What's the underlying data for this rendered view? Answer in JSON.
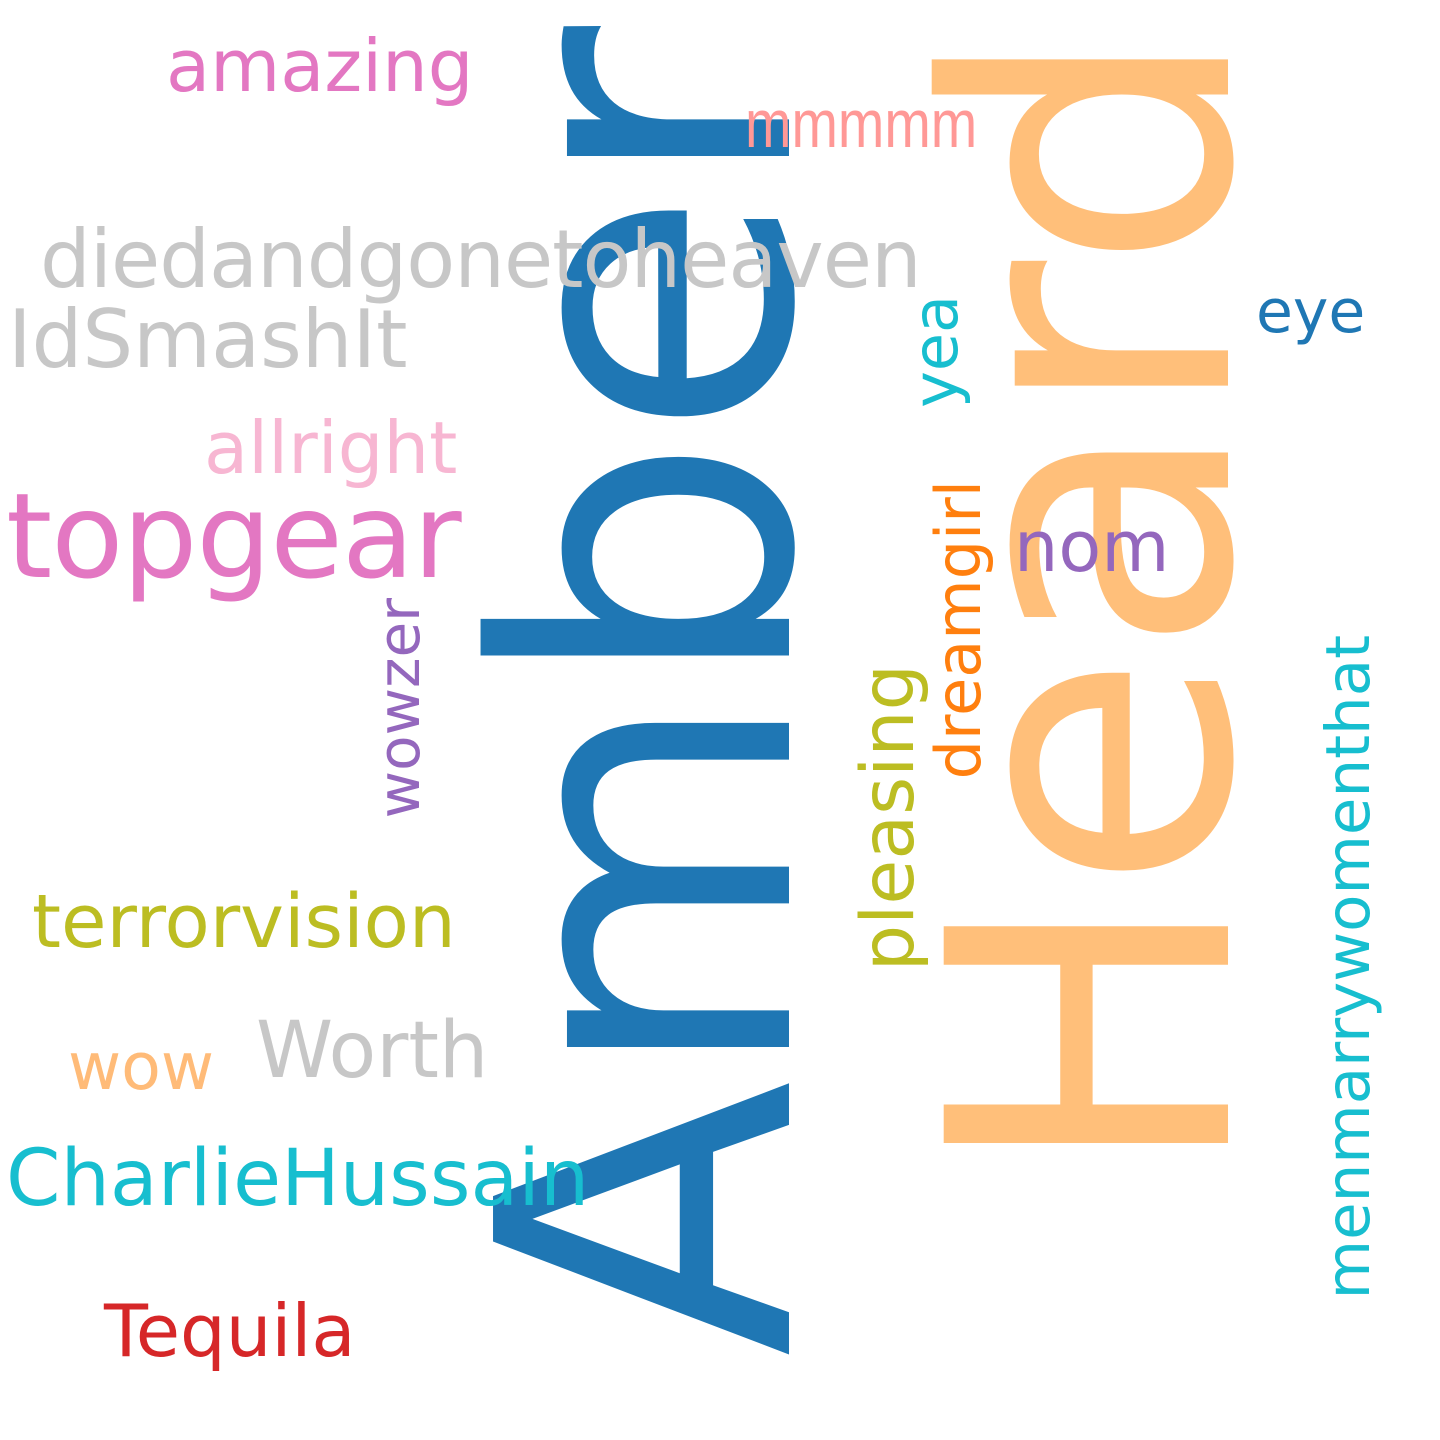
{
  "words": {
    "amber": {
      "text": "Amber",
      "color": "#1f77b4"
    },
    "heard": {
      "text": "Heard",
      "color": "#ffbf7a"
    },
    "topgear": {
      "text": "topgear",
      "color": "#e377c2"
    },
    "diedandgonetoheaven": {
      "text": "diedandgonetoheaven",
      "color": "#c7c7c7"
    },
    "idsmashit": {
      "text": "IdSmashIt",
      "color": "#c7c7c7"
    },
    "amazing": {
      "text": "amazing",
      "color": "#e377c2"
    },
    "mmmmm": {
      "text": "mmmmm",
      "color": "#ff9896"
    },
    "allright": {
      "text": "allright",
      "color": "#f7b6d2"
    },
    "terrorvision": {
      "text": "terrorvision",
      "color": "#bcbd22"
    },
    "worth": {
      "text": "Worth",
      "color": "#c7c7c7"
    },
    "wow": {
      "text": "wow",
      "color": "#ffbb78"
    },
    "charliehussain": {
      "text": "CharlieHussain",
      "color": "#17becf"
    },
    "tequila": {
      "text": "Tequila",
      "color": "#d62728"
    },
    "wowzer": {
      "text": "wowzer",
      "color": "#9467bd"
    },
    "pleasing": {
      "text": "pleasing",
      "color": "#bcbd22"
    },
    "dreamgirl": {
      "text": "dreamgirl",
      "color": "#ff7f0e"
    },
    "yea": {
      "text": "yea",
      "color": "#17becf"
    },
    "nom": {
      "text": "nom",
      "color": "#9467bd"
    },
    "eye": {
      "text": "eye",
      "color": "#1f77b4"
    },
    "menmarrywomenthat": {
      "text": "menmarrywomenthat",
      "color": "#17becf"
    }
  }
}
